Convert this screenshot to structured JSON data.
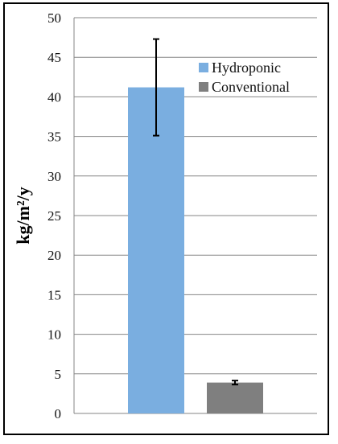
{
  "chart_data": {
    "type": "bar",
    "categories": [
      "",
      ""
    ],
    "series": [
      {
        "name": "Hydroponic",
        "values": [
          41.2,
          null
        ],
        "error": [
          6.1,
          null
        ],
        "color": "#7aaee0"
      },
      {
        "name": "Conventional",
        "values": [
          null,
          3.9
        ],
        "error": [
          null,
          0.25
        ],
        "color": "#7f7f7f"
      }
    ],
    "ylabel": "kg/m²/y",
    "ylim": [
      0,
      50
    ],
    "yticks": [
      "0",
      "5",
      "10",
      "15",
      "20",
      "25",
      "30",
      "35",
      "40",
      "45",
      "50"
    ],
    "grid": true,
    "legend_position": "top-right"
  }
}
